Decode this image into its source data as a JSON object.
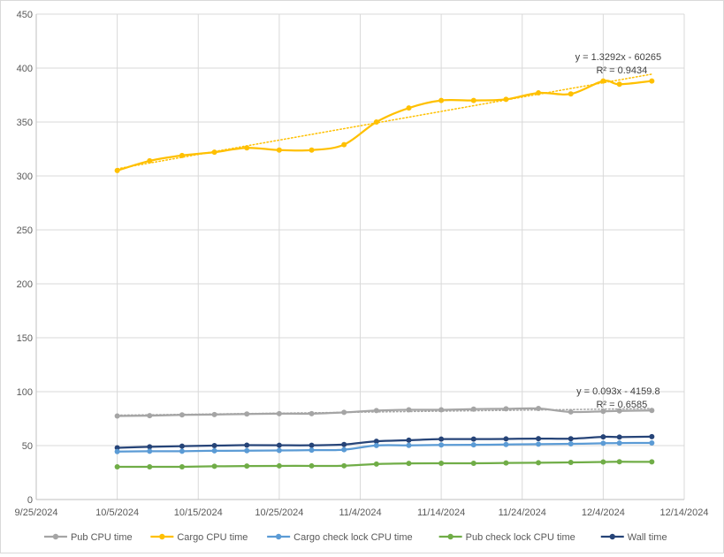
{
  "chart_data": {
    "type": "scatter",
    "x_type": "date",
    "xlim": [
      "2024-09-25",
      "2024-12-14"
    ],
    "ylim": [
      0,
      450
    ],
    "x_ticks": [
      "2024-09-25",
      "2024-10-05",
      "2024-10-15",
      "2024-10-25",
      "2024-11-04",
      "2024-11-14",
      "2024-11-24",
      "2024-12-04",
      "2024-12-14"
    ],
    "x_tick_labels": [
      "9/25/2024",
      "10/5/2024",
      "10/15/2024",
      "10/25/2024",
      "11/4/2024",
      "11/14/2024",
      "11/24/2024",
      "12/4/2024",
      "12/14/2024"
    ],
    "y_ticks": [
      0,
      50,
      100,
      150,
      200,
      250,
      300,
      350,
      400,
      450
    ],
    "y_tick_labels": [
      "0",
      "50",
      "100",
      "150",
      "200",
      "250",
      "300",
      "350",
      "400",
      "450"
    ],
    "grid": true,
    "smooth": true,
    "legend_position": "bottom",
    "x": [
      "2024-10-05",
      "2024-10-09",
      "2024-10-13",
      "2024-10-17",
      "2024-10-21",
      "2024-10-25",
      "2024-10-29",
      "2024-11-02",
      "2024-11-06",
      "2024-11-10",
      "2024-11-14",
      "2024-11-18",
      "2024-11-22",
      "2024-11-26",
      "2024-11-30",
      "2024-12-04",
      "2024-12-06",
      "2024-12-10"
    ],
    "series": [
      {
        "name": "Pub CPU time",
        "color": "#A5A5A5",
        "values": [
          77.5,
          77.8,
          78.5,
          78.8,
          79.3,
          79.6,
          79.6,
          80.8,
          82.5,
          83.2,
          83.2,
          83.8,
          84.1,
          84.4,
          81.2,
          81.8,
          82.2,
          82.6
        ]
      },
      {
        "name": "Cargo CPU time",
        "color": "#FFC000",
        "values": [
          305,
          314,
          319,
          322,
          326,
          324,
          324,
          329,
          350,
          363,
          370,
          370,
          371,
          377,
          376,
          388,
          385,
          388
        ]
      },
      {
        "name": "Cargo check lock CPU time",
        "color": "#5B9BD5",
        "values": [
          44.5,
          44.8,
          44.8,
          45.2,
          45.3,
          45.5,
          45.8,
          46.2,
          50.1,
          50.2,
          50.6,
          50.7,
          51.0,
          51.3,
          51.6,
          52.2,
          52.4,
          52.5
        ]
      },
      {
        "name": "Pub check lock CPU time",
        "color": "#70AD47",
        "values": [
          30.3,
          30.3,
          30.3,
          30.8,
          31.0,
          31.2,
          31.2,
          31.3,
          32.9,
          33.5,
          33.6,
          33.6,
          33.9,
          34.1,
          34.4,
          34.8,
          35.0,
          34.9
        ]
      },
      {
        "name": "Wall time",
        "color": "#264478",
        "values": [
          48.0,
          48.9,
          49.5,
          50.0,
          50.4,
          50.3,
          50.3,
          51.0,
          54.0,
          55.0,
          56.0,
          56.0,
          56.2,
          56.5,
          56.4,
          58.1,
          57.9,
          58.3
        ]
      }
    ],
    "trendlines": [
      {
        "series": "Cargo CPU time",
        "slope": 1.3292,
        "intercept": -60265,
        "equation": "y = 1.3292x - 60265",
        "r2": "R² = 0.9434"
      },
      {
        "series": "Pub CPU time",
        "slope": 0.093,
        "intercept": -4159.8,
        "equation": "y = 0.093x - 4159.8",
        "r2": "R² = 0.6585"
      }
    ]
  }
}
